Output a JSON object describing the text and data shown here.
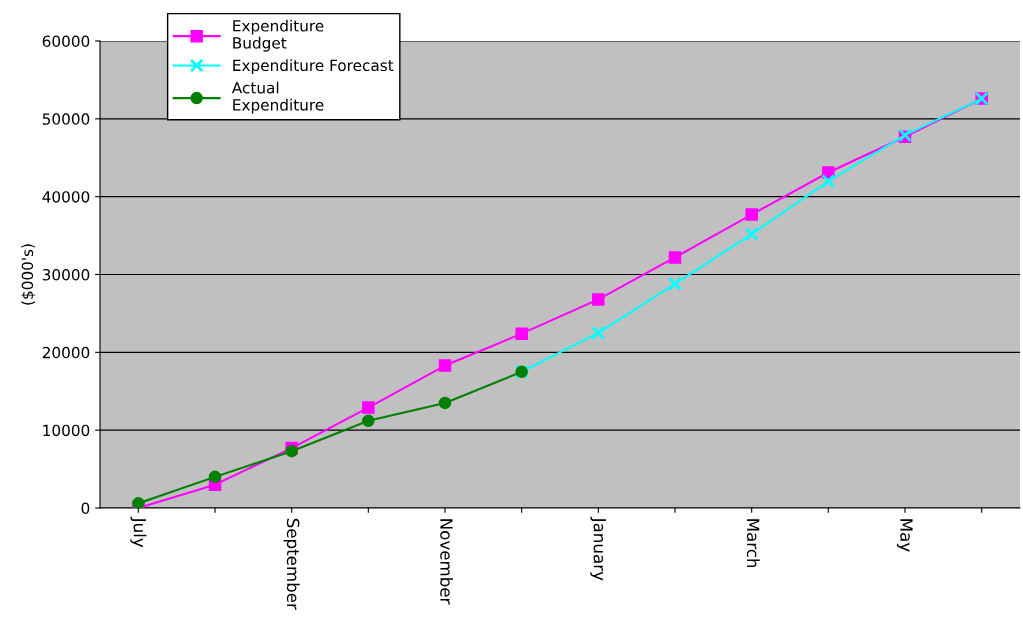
{
  "chart_data": {
    "type": "line",
    "ylabel": "($000's)",
    "categories": [
      "July",
      null,
      "September",
      null,
      "November",
      null,
      "January",
      null,
      "March",
      null,
      "May",
      null
    ],
    "series": [
      {
        "name": "Expenditure Budget",
        "color": "#ff00ff",
        "marker": "square",
        "values": [
          0,
          3000,
          7700,
          12900,
          18300,
          22400,
          26800,
          32200,
          37700,
          43100,
          47700,
          52600
        ]
      },
      {
        "name": "Expenditure Forecast",
        "color": "#00ffff",
        "marker": "cross",
        "values": [
          null,
          null,
          null,
          null,
          null,
          17500,
          22500,
          28800,
          35200,
          42000,
          47900,
          52600
        ]
      },
      {
        "name": "Actual Expenditure",
        "color": "#008000",
        "marker": "circle",
        "values": [
          600,
          4000,
          7300,
          11200,
          13500,
          17500,
          null,
          null,
          null,
          null,
          null,
          null
        ]
      }
    ],
    "ylim": [
      0,
      60000
    ],
    "yticks": [
      0,
      10000,
      20000,
      30000,
      40000,
      50000,
      60000
    ],
    "grid": "y",
    "legend": "top left"
  }
}
